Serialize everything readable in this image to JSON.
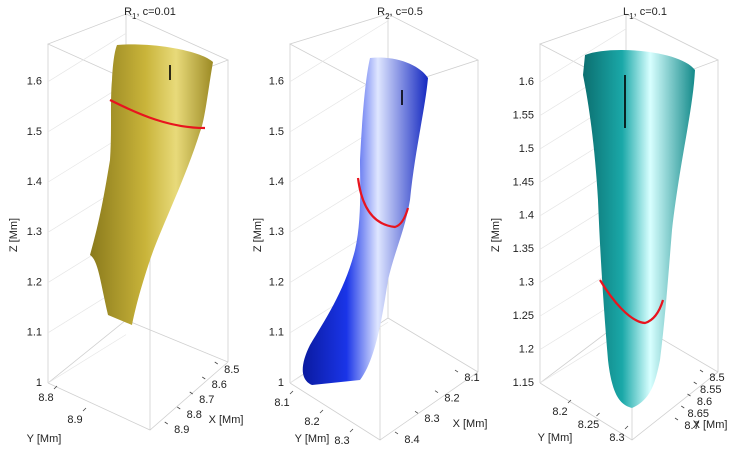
{
  "chart_data": [
    {
      "type": "surface3d",
      "title": {
        "main": "R",
        "sub": "1",
        "rest": ", c=0.01"
      },
      "xlabel": "X [Mm]",
      "ylabel": "Y [Mm]",
      "zlabel": "Z [Mm]",
      "xlim": [
        8.45,
        8.95
      ],
      "xticks": [
        8.5,
        8.6,
        8.7,
        8.8,
        8.9
      ],
      "ylim": [
        8.75,
        8.95
      ],
      "yticks": [
        8.8,
        8.9
      ],
      "zlim": [
        1,
        1.675
      ],
      "zticks": [
        1,
        1.1,
        1.2,
        1.3,
        1.4,
        1.5,
        1.6
      ],
      "color": "#c9b43a",
      "curve_color": "#e8141e",
      "grid": true
    },
    {
      "type": "surface3d",
      "title": {
        "main": "R",
        "sub": "2",
        "rest": ", c=0.5"
      },
      "xlabel": "X [Mm]",
      "ylabel": "Y [Mm]",
      "zlabel": "Z [Mm]",
      "xlim": [
        8.08,
        8.42
      ],
      "xticks": [
        8.1,
        8.2,
        8.3,
        8.4
      ],
      "ylim": [
        8.08,
        8.32
      ],
      "yticks": [
        8.1,
        8.2,
        8.3
      ],
      "zlim": [
        1,
        1.675
      ],
      "zticks": [
        1,
        1.1,
        1.2,
        1.3,
        1.4,
        1.5,
        1.6
      ],
      "color": "#1a35e8",
      "curve_color": "#e8141e",
      "grid": true
    },
    {
      "type": "surface3d",
      "title": {
        "main": "L",
        "sub": "1",
        "rest": ", c=0.1"
      },
      "xlabel": "X [Mm]",
      "ylabel": "Y [Mm]",
      "zlabel": "Z [Mm]",
      "xlim": [
        8.48,
        8.72
      ],
      "xticks": [
        8.5,
        8.55,
        8.6,
        8.65,
        8.7
      ],
      "ylim": [
        8.18,
        8.32
      ],
      "yticks": [
        8.2,
        8.25,
        8.3
      ],
      "zlim": [
        1.15,
        1.657
      ],
      "zticks": [
        1.15,
        1.2,
        1.25,
        1.3,
        1.35,
        1.4,
        1.45,
        1.5,
        1.55,
        1.6
      ],
      "color": "#1aa8a8",
      "curve_color": "#e8141e",
      "grid": true
    }
  ]
}
